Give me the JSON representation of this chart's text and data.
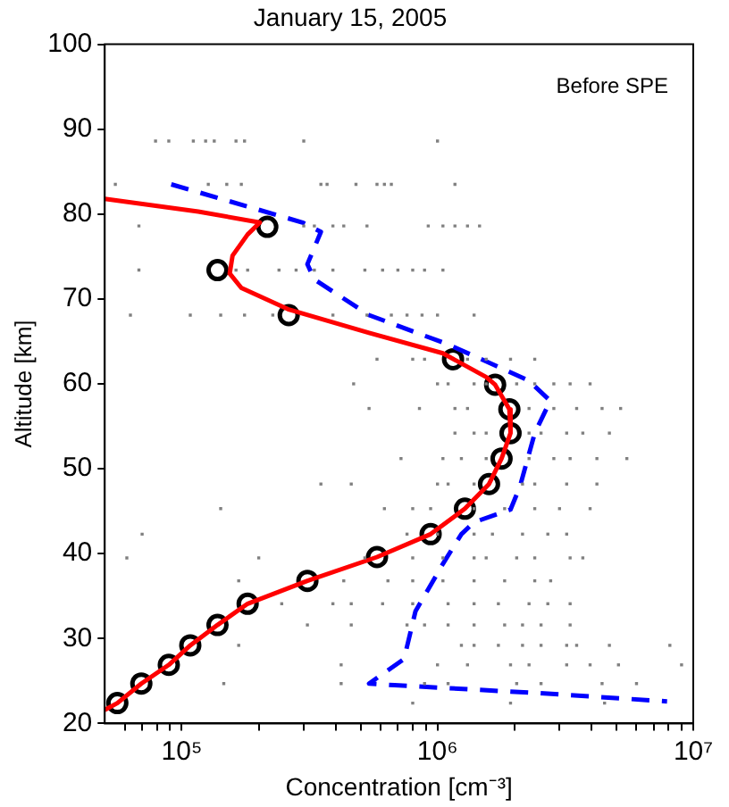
{
  "chart_data": {
    "type": "line",
    "title": "January 15, 2005",
    "xlabel": "Concentration [cm⁻³]",
    "ylabel": "Altitude [km]",
    "annotations": [
      "Before SPE"
    ],
    "log": "x",
    "grid": false,
    "xlim": [
      50000,
      10000000
    ],
    "ylim": [
      20,
      100
    ],
    "xticks": [
      {
        "value": 60000,
        "label": null
      },
      {
        "value": 70000,
        "label": null
      },
      {
        "value": 80000,
        "label": null
      },
      {
        "value": 90000,
        "label": null
      },
      {
        "value": 100000,
        "label": "10⁵"
      },
      {
        "value": 200000,
        "label": null
      },
      {
        "value": 300000,
        "label": null
      },
      {
        "value": 400000,
        "label": null
      },
      {
        "value": 500000,
        "label": null
      },
      {
        "value": 600000,
        "label": null
      },
      {
        "value": 700000,
        "label": null
      },
      {
        "value": 800000,
        "label": null
      },
      {
        "value": 900000,
        "label": null
      },
      {
        "value": 1000000,
        "label": "10⁶"
      },
      {
        "value": 2000000,
        "label": null
      },
      {
        "value": 3000000,
        "label": null
      },
      {
        "value": 4000000,
        "label": null
      },
      {
        "value": 5000000,
        "label": null
      },
      {
        "value": 6000000,
        "label": null
      },
      {
        "value": 7000000,
        "label": null
      },
      {
        "value": 8000000,
        "label": null
      },
      {
        "value": 9000000,
        "label": null
      },
      {
        "value": 10000000,
        "label": "10⁷"
      }
    ],
    "yticks": [
      20,
      30,
      40,
      50,
      60,
      70,
      80,
      90,
      100
    ],
    "series": [
      {
        "type": "scatter",
        "color": "#808080",
        "marker": "square",
        "x": [
          79000,
          89000,
          111000,
          124000,
          134000,
          163000,
          176000,
          300000,
          1000000,
          55000,
          127000,
          150000,
          171000,
          350000,
          370000,
          480000,
          580000,
          620000,
          660000,
          1170000,
          68000,
          300000,
          330000,
          390000,
          430000,
          530000,
          920000,
          1050000,
          1170000,
          1310000,
          1460000,
          68000,
          163000,
          181000,
          240000,
          280000,
          330000,
          390000,
          520000,
          610000,
          700000,
          800000,
          890000,
          1050000,
          63000,
          108000,
          142000,
          176000,
          227000,
          390000,
          530000,
          660000,
          760000,
          870000,
          1000000,
          1390000,
          580000,
          800000,
          890000,
          1310000,
          1550000,
          1930000,
          2400000,
          470000,
          1000000,
          1100000,
          1390000,
          1550000,
          2040000,
          2400000,
          2850000,
          3300000,
          3950000,
          540000,
          850000,
          1170000,
          1310000,
          2280000,
          2850000,
          3500000,
          4400000,
          5200000,
          1170000,
          1390000,
          1550000,
          2280000,
          2540000,
          3200000,
          3700000,
          4700000,
          720000,
          1050000,
          1240000,
          1550000,
          2280000,
          2850000,
          3300000,
          4200000,
          5500000,
          350000,
          460000,
          1000000,
          1100000,
          1390000,
          2150000,
          2400000,
          3200000,
          4200000,
          142000,
          620000,
          800000,
          940000,
          1390000,
          1830000,
          2400000,
          3000000,
          3950000,
          70000,
          760000,
          1000000,
          1390000,
          1640000,
          2150000,
          2700000,
          3200000,
          61000,
          200000,
          520000,
          800000,
          1050000,
          1390000,
          1550000,
          2040000,
          2400000,
          3300000,
          3700000,
          167000,
          430000,
          640000,
          800000,
          1050000,
          1390000,
          1830000,
          2400000,
          2770000,
          246000,
          390000,
          460000,
          610000,
          800000,
          1100000,
          1390000,
          1730000,
          2280000,
          2700000,
          3300000,
          310000,
          460000,
          760000,
          890000,
          1100000,
          1390000,
          1830000,
          2150000,
          2540000,
          3300000,
          167000,
          1240000,
          1390000,
          1730000,
          2150000,
          2540000,
          3200000,
          3500000,
          4700000,
          8100000,
          420000,
          1000000,
          1310000,
          1930000,
          2280000,
          3200000,
          3950000,
          5100000,
          9000000,
          146000,
          420000,
          890000,
          1100000,
          2040000,
          2540000,
          4400000,
          6000000,
          800000,
          1930000,
          4500000
        ],
        "values": [
          88.6,
          88.6,
          88.6,
          88.6,
          88.6,
          88.6,
          88.6,
          88.6,
          88.6,
          83.5,
          83.5,
          83.5,
          83.5,
          83.5,
          83.5,
          83.5,
          83.5,
          83.5,
          83.5,
          83.5,
          78.6,
          78.6,
          78.6,
          78.6,
          78.6,
          78.6,
          78.6,
          78.6,
          78.6,
          78.6,
          78.6,
          73.4,
          73.4,
          73.4,
          73.4,
          73.4,
          73.4,
          73.4,
          73.4,
          73.4,
          73.4,
          73.4,
          73.4,
          73.4,
          68.1,
          68.1,
          68.1,
          68.1,
          68.1,
          68.1,
          68.1,
          68.1,
          68.1,
          68.1,
          68.1,
          68.1,
          62.9,
          62.9,
          62.9,
          62.9,
          62.9,
          62.9,
          62.9,
          60,
          60,
          60,
          60,
          60,
          60,
          60,
          60,
          60,
          60,
          57.1,
          57.1,
          57.1,
          57.1,
          57.1,
          57.1,
          57.1,
          57.1,
          57.1,
          54.2,
          54.2,
          54.2,
          54.2,
          54.2,
          54.2,
          54.2,
          54.2,
          51.2,
          51.2,
          51.2,
          51.2,
          51.2,
          51.2,
          51.2,
          51.2,
          51.2,
          48.2,
          48.2,
          48.2,
          48.2,
          48.2,
          48.2,
          48.2,
          48.2,
          48.2,
          45.3,
          45.3,
          45.3,
          45.3,
          45.3,
          45.3,
          45.3,
          45.3,
          45.3,
          42.3,
          42.3,
          42.3,
          42.3,
          42.3,
          42.3,
          42.3,
          42.3,
          39.5,
          39.5,
          39.5,
          39.5,
          39.5,
          39.5,
          39.5,
          39.5,
          39.5,
          39.5,
          39.5,
          36.8,
          36.8,
          36.8,
          36.8,
          36.8,
          36.8,
          36.8,
          36.8,
          36.8,
          34.1,
          34.1,
          34.1,
          34.1,
          34.1,
          34.1,
          34.1,
          34.1,
          34.1,
          34.1,
          34.1,
          31.6,
          31.6,
          31.6,
          31.6,
          31.6,
          31.6,
          31.6,
          31.6,
          31.6,
          31.6,
          29.2,
          29.2,
          29.2,
          29.2,
          29.2,
          29.2,
          29.2,
          29.2,
          29.2,
          29.2,
          26.9,
          26.9,
          26.9,
          26.9,
          26.9,
          26.9,
          26.9,
          26.9,
          26.9,
          24.7,
          24.7,
          24.7,
          24.7,
          24.7,
          24.7,
          24.7,
          24.7,
          22.4,
          22.4,
          22.4
        ]
      },
      {
        "type": "line",
        "color": "#0000ff",
        "line_style": "dashed",
        "marker": "none",
        "x": [
          91000,
          297000,
          350000,
          310000,
          330000,
          540000,
          1110000,
          2270000,
          2760000,
          2400000,
          2100000,
          1930000,
          1390000,
          1240000,
          1050000,
          820000,
          740000,
          540000,
          680000,
          2400000,
          7900000
        ],
        "values": [
          83.5,
          79,
          77.9,
          74.1,
          72.3,
          68.1,
          64.6,
          60.4,
          58,
          54.2,
          47.9,
          45.2,
          43.7,
          42.3,
          38.8,
          33.2,
          27.6,
          24.7,
          24.5,
          23.6,
          22.6
        ]
      },
      {
        "type": "line",
        "color": "#ff0000",
        "line_style": "solid",
        "marker": "none",
        "x": [
          50000,
          116000,
          202000,
          181000,
          158000,
          154000,
          171000,
          260000,
          540000,
          1050000,
          1550000,
          1680000,
          1910000,
          1930000,
          1780000,
          1590000,
          1280000,
          940000,
          580000,
          310000,
          181000,
          138000,
          108000,
          89000,
          69500,
          56000,
          50000
        ],
        "values": [
          81.8,
          80.3,
          79,
          77.6,
          75.1,
          73,
          71.3,
          68.8,
          66,
          63.6,
          60.8,
          59.9,
          57,
          54.2,
          51.2,
          48.2,
          45.3,
          42.3,
          39.6,
          36.8,
          34.1,
          31.6,
          29.2,
          26.9,
          24.7,
          22.4,
          21.6
        ]
      },
      {
        "type": "scatter",
        "color": "#000000",
        "marker": "circle",
        "x": [
          216000,
          138000,
          262000,
          1150000,
          1680000,
          1910000,
          1930000,
          1780000,
          1590000,
          1280000,
          940000,
          580000,
          310000,
          181000,
          138000,
          108000,
          89000,
          69500,
          56000
        ],
        "values": [
          78.5,
          73.4,
          68.1,
          62.9,
          59.9,
          57,
          54.2,
          51.2,
          48.2,
          45.3,
          42.3,
          39.6,
          36.8,
          34.1,
          31.6,
          29.2,
          26.9,
          24.7,
          22.4
        ]
      }
    ]
  }
}
